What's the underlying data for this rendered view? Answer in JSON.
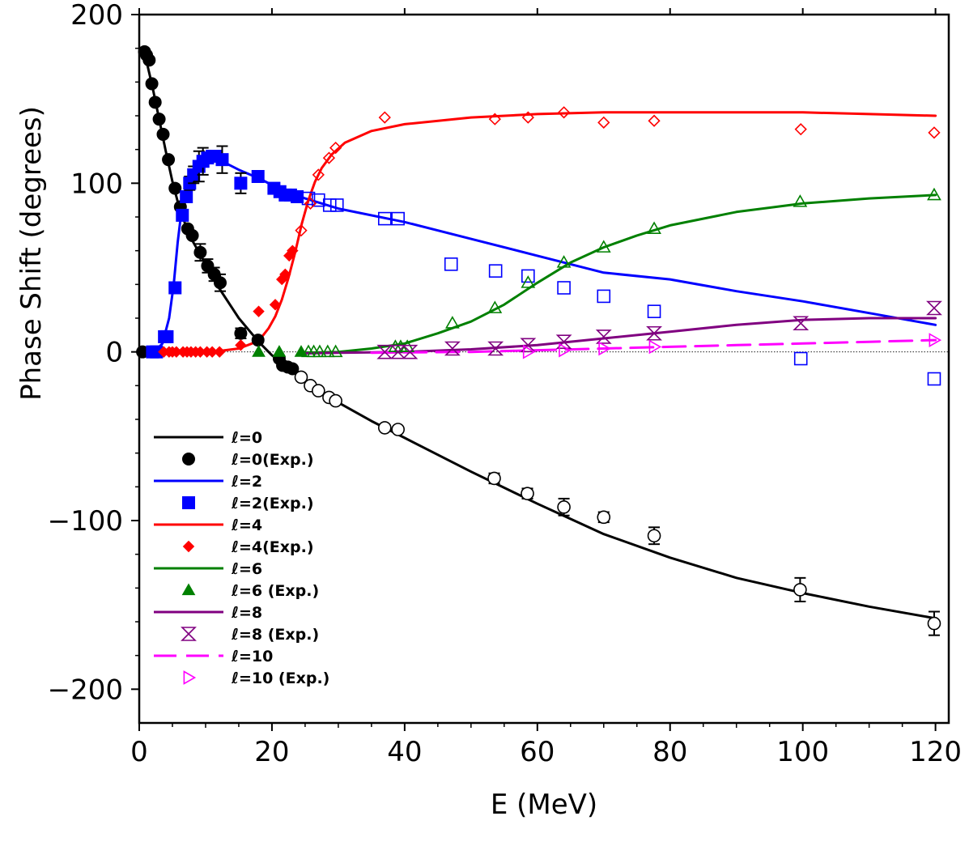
{
  "chart_data": {
    "type": "line",
    "title": "",
    "xlabel": "E (MeV)",
    "ylabel": "Phase Shift (degrees)",
    "xlim": [
      0,
      122
    ],
    "ylim": [
      -220,
      200
    ],
    "xticks": [
      0,
      20,
      40,
      60,
      80,
      100,
      120
    ],
    "xtick_labels": [
      "0",
      "20",
      "40",
      "60",
      "80",
      "100",
      "120"
    ],
    "yticks": [
      -200,
      -100,
      0,
      100,
      200
    ],
    "ytick_labels": [
      "−200",
      "−100",
      "0",
      "100",
      "200"
    ],
    "grid": false,
    "zero_line": true,
    "legend_position": "lower-left",
    "series": [
      {
        "name": "ℓ=0",
        "kind": "line",
        "color": "#000000",
        "dash": "",
        "x": [
          0.5,
          1,
          2,
          3,
          4,
          5,
          6,
          7,
          8,
          10,
          12,
          15,
          18,
          20,
          22,
          25,
          30,
          35,
          40,
          50,
          60,
          70,
          80,
          90,
          100,
          110,
          120
        ],
        "y": [
          178,
          174,
          157,
          138,
          119,
          101,
          86,
          75,
          66,
          52,
          38,
          20,
          6,
          -2,
          -8,
          -17,
          -30,
          -41,
          -51,
          -71,
          -90,
          -108,
          -122,
          -134,
          -143,
          -151,
          -158
        ]
      },
      {
        "name": "ℓ=0(Exp.)",
        "kind": "marker",
        "marker": "circle",
        "filled": true,
        "color": "#000000",
        "x": [
          0.5,
          0.8,
          1.1,
          1.5,
          1.9,
          2.4,
          3,
          3.6,
          4.4,
          5.4,
          6.2,
          7.3,
          8,
          9.2,
          10.3,
          11.3,
          12.2,
          15.3,
          17.9,
          21.1,
          21.6,
          22.4,
          23.1
        ],
        "y": [
          0,
          178,
          176,
          173,
          159,
          148,
          138,
          129,
          114,
          97,
          86,
          73,
          69,
          59,
          51,
          46,
          41,
          11,
          7,
          -4,
          -8,
          -9,
          -10
        ],
        "yerr": [
          0,
          0,
          0,
          0,
          0,
          0,
          0,
          0,
          0,
          0,
          0,
          0,
          0,
          5,
          4,
          4,
          5,
          3,
          0,
          0,
          0,
          0,
          0
        ]
      },
      {
        "name": "ℓ=0(Exp.) open",
        "kind": "marker",
        "marker": "circle",
        "filled": false,
        "color": "#000000",
        "x": [
          24.4,
          25.8,
          27,
          28.6,
          29.6,
          37,
          39,
          53.5,
          58.5,
          64,
          70,
          77.6,
          99.6,
          119.8
        ],
        "y": [
          -15,
          -20,
          -23,
          -27,
          -29,
          -45,
          -46,
          -75,
          -84,
          -92,
          -98,
          -109,
          -141,
          -161
        ],
        "yerr": [
          0,
          0,
          0,
          0,
          0,
          0,
          0,
          3,
          3,
          5,
          3,
          5,
          7,
          7
        ]
      },
      {
        "name": "ℓ=2",
        "kind": "line",
        "color": "#0000ff",
        "dash": "",
        "x": [
          1.5,
          2.5,
          3.5,
          4.5,
          5.2,
          5.8,
          6.5,
          7.5,
          8.5,
          9.5,
          11,
          12.5,
          15,
          18,
          20,
          22,
          25,
          30,
          40,
          50,
          60,
          70,
          80,
          90,
          100,
          110,
          120
        ],
        "y": [
          0,
          1,
          5,
          20,
          40,
          65,
          88,
          103,
          111,
          114,
          115,
          113,
          108,
          103,
          99,
          96,
          91,
          85,
          77,
          67,
          57,
          47,
          43,
          36,
          30,
          23,
          16
        ]
      },
      {
        "name": "ℓ=2(Exp.)",
        "kind": "marker",
        "marker": "square",
        "filled": true,
        "color": "#0000ff",
        "x": [
          2,
          2.6,
          3.8,
          4.2,
          5.4,
          6.5,
          7.1,
          7.6,
          8.2,
          9,
          9.6,
          10.3,
          11,
          11.5,
          12.5,
          15.3,
          17.9,
          20.3,
          21.2,
          22,
          22.8,
          23.8
        ],
        "y": [
          0,
          0,
          9,
          9,
          38,
          81,
          92,
          100,
          105,
          110,
          113,
          115,
          116,
          116,
          114,
          100,
          104,
          97,
          95,
          93,
          93,
          92
        ],
        "yerr": [
          0,
          0,
          0,
          0,
          0,
          0,
          0,
          4,
          5,
          9,
          8,
          0,
          0,
          0,
          8,
          6,
          0,
          0,
          0,
          0,
          0,
          0
        ]
      },
      {
        "name": "ℓ=2(Exp.) open",
        "kind": "marker",
        "marker": "square",
        "filled": false,
        "color": "#0000ff",
        "x": [
          25.5,
          27,
          28.7,
          29.8,
          37,
          39,
          47,
          53.7,
          58.6,
          64,
          70,
          77.6,
          99.7,
          119.8
        ],
        "y": [
          91,
          90,
          87,
          87,
          79,
          79,
          52,
          48,
          45,
          38,
          33,
          24,
          -4,
          -16
        ],
        "yerr": [
          0,
          0,
          0,
          0,
          0,
          0,
          0,
          0,
          0,
          0,
          0,
          0,
          0,
          0
        ]
      },
      {
        "name": "ℓ=4",
        "kind": "line",
        "color": "#ff0000",
        "dash": "",
        "x": [
          4,
          8,
          12,
          15,
          17,
          18.5,
          19.5,
          20.5,
          21.5,
          22.5,
          23.5,
          24.5,
          25.5,
          26.5,
          27.5,
          29,
          31,
          35,
          40,
          50,
          60,
          70,
          80,
          90,
          100,
          110,
          120
        ],
        "y": [
          0,
          0,
          0.5,
          2,
          5,
          9,
          14,
          21,
          31,
          44,
          59,
          76,
          90,
          101,
          109,
          117,
          124,
          131,
          135,
          139,
          141,
          142,
          142,
          142,
          142,
          141,
          140
        ]
      },
      {
        "name": "ℓ=4(Exp.)",
        "kind": "marker",
        "marker": "diamond",
        "filled": true,
        "color": "#ff0000",
        "x": [
          3.7,
          4.5,
          5,
          5.6,
          6.6,
          7.2,
          7.8,
          8.5,
          9.2,
          10.2,
          11,
          12.1,
          15.3,
          18,
          20.5,
          21.5,
          22,
          22.6,
          23.1
        ],
        "y": [
          0,
          0,
          0,
          0,
          0,
          0,
          0,
          0,
          0,
          0,
          0,
          0,
          4,
          24,
          28,
          43,
          46,
          57,
          60
        ],
        "yerr": [
          0,
          0,
          0,
          0,
          0,
          0,
          0,
          0,
          0,
          0,
          0,
          0,
          0,
          0,
          0,
          0,
          0,
          0,
          0
        ]
      },
      {
        "name": "ℓ=4(Exp.) open",
        "kind": "marker",
        "marker": "diamond",
        "filled": false,
        "color": "#ff0000",
        "x": [
          24.4,
          25.8,
          27,
          28.6,
          29.6,
          37,
          53.6,
          58.6,
          64,
          70,
          77.6,
          99.7,
          119.8
        ],
        "y": [
          72,
          88,
          105,
          115,
          121,
          139,
          138,
          139,
          142,
          136,
          137,
          132,
          130
        ],
        "yerr": [
          0,
          0,
          0,
          0,
          0,
          0,
          0,
          0,
          0,
          0,
          0,
          0,
          0
        ]
      },
      {
        "name": "ℓ=6",
        "kind": "line",
        "color": "#008000",
        "dash": "",
        "x": [
          24,
          30,
          35,
          40,
          45,
          50,
          55,
          60,
          65,
          70,
          75,
          80,
          90,
          100,
          110,
          120
        ],
        "y": [
          -0.5,
          0,
          2,
          5,
          11,
          18,
          28,
          41,
          53,
          62,
          69,
          75,
          83,
          88,
          91,
          93
        ]
      },
      {
        "name": "ℓ=6 (Exp.)",
        "kind": "marker",
        "marker": "triangle",
        "filled": true,
        "color": "#008000",
        "x": [
          18,
          21.1,
          24.4
        ],
        "y": [
          0,
          0,
          0
        ],
        "yerr": [
          0,
          0,
          0
        ]
      },
      {
        "name": "ℓ=6 (Exp.) open",
        "kind": "marker",
        "marker": "triangle",
        "filled": false,
        "color": "#008000",
        "x": [
          25.5,
          26.3,
          27.2,
          28.4,
          29.6,
          38.6,
          39.4,
          40.4,
          47.2,
          53.6,
          58.6,
          64,
          70,
          77.6,
          99.6,
          119.8
        ],
        "y": [
          0,
          0,
          0,
          0,
          0,
          3,
          3,
          3,
          17,
          26,
          41,
          53,
          62,
          73,
          89,
          93
        ],
        "yerr": [
          0,
          0,
          0,
          0,
          0,
          0,
          0,
          0,
          0,
          0,
          0,
          0,
          0,
          0,
          0,
          0
        ]
      },
      {
        "name": "ℓ=8",
        "kind": "line",
        "color": "#800080",
        "dash": "",
        "x": [
          24,
          30,
          40,
          50,
          60,
          70,
          80,
          90,
          100,
          110,
          120
        ],
        "y": [
          -1,
          -0.5,
          0,
          1.5,
          4,
          8,
          12,
          16,
          19,
          20,
          20
        ]
      },
      {
        "name": "ℓ=8 (Exp.)",
        "kind": "marker",
        "marker": "hourglass",
        "filled": false,
        "color": "#800080",
        "x": [
          37,
          39,
          40.8,
          47.2,
          53.7,
          58.6,
          64,
          70,
          77.6,
          99.7,
          119.8
        ],
        "y": [
          0,
          0,
          0,
          2,
          2,
          4,
          6,
          9,
          11,
          17,
          26
        ],
        "yerr": [
          0,
          0,
          0,
          0,
          0,
          0,
          0,
          0,
          0,
          0,
          0
        ]
      },
      {
        "name": "ℓ=10",
        "kind": "line",
        "color": "#ff00ff",
        "dash": "28,12",
        "x": [
          35,
          40,
          50,
          60,
          70,
          80,
          90,
          100,
          110,
          120
        ],
        "y": [
          -0.5,
          -0.3,
          0,
          1,
          2,
          3,
          4,
          5,
          6,
          7
        ]
      },
      {
        "name": "ℓ=10 (Exp.)",
        "kind": "marker",
        "marker": "triangle-right",
        "filled": false,
        "color": "#ff00ff",
        "x": [
          58.6,
          64,
          70,
          77.6,
          119.8
        ],
        "y": [
          0,
          1,
          2,
          3,
          7
        ],
        "yerr": [
          0,
          0,
          0,
          0,
          0
        ]
      }
    ],
    "legend": [
      {
        "label": "ℓ=0",
        "color": "#000000",
        "type": "line",
        "dash": ""
      },
      {
        "label": "ℓ=0(Exp.)",
        "color": "#000000",
        "type": "marker",
        "marker": "circle",
        "filled": true
      },
      {
        "label": "ℓ=2",
        "color": "#0000ff",
        "type": "line",
        "dash": ""
      },
      {
        "label": "ℓ=2(Exp.)",
        "color": "#0000ff",
        "type": "marker",
        "marker": "square",
        "filled": true
      },
      {
        "label": "ℓ=4",
        "color": "#ff0000",
        "type": "line",
        "dash": ""
      },
      {
        "label": "ℓ=4(Exp.)",
        "color": "#ff0000",
        "type": "marker",
        "marker": "diamond",
        "filled": true
      },
      {
        "label": "ℓ=6",
        "color": "#008000",
        "type": "line",
        "dash": ""
      },
      {
        "label": "ℓ=6 (Exp.)",
        "color": "#008000",
        "type": "marker",
        "marker": "triangle",
        "filled": true
      },
      {
        "label": "ℓ=8",
        "color": "#800080",
        "type": "line",
        "dash": ""
      },
      {
        "label": "ℓ=8 (Exp.)",
        "color": "#800080",
        "type": "marker",
        "marker": "hourglass",
        "filled": false
      },
      {
        "label": "ℓ=10",
        "color": "#ff00ff",
        "type": "line",
        "dash": "28,12"
      },
      {
        "label": "ℓ=10 (Exp.)",
        "color": "#ff00ff",
        "type": "marker",
        "marker": "triangle-right",
        "filled": false
      }
    ]
  }
}
